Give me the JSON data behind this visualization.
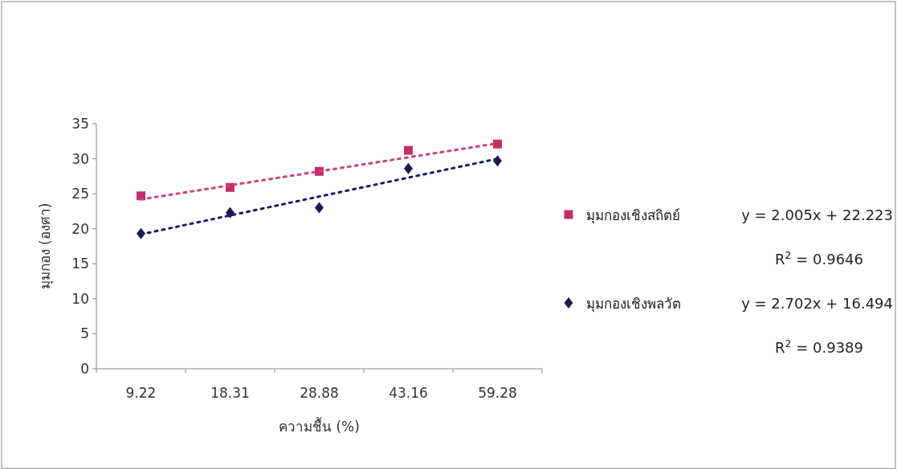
{
  "chart_data": {
    "type": "scatter",
    "xlabel": "ความชื้น (%)",
    "ylabel": "มุมกอง (องศา)",
    "categories": [
      "9.22",
      "18.31",
      "28.88",
      "43.16",
      "59.28"
    ],
    "ylim": [
      0,
      35
    ],
    "yticks": [
      0,
      5,
      10,
      15,
      20,
      25,
      30,
      35
    ],
    "legend": "right",
    "series": [
      {
        "name": "มุมกองเชิงสถิตย์",
        "type": "scatter",
        "marker": "square",
        "color": "#c0306a",
        "values": [
          24.7,
          25.9,
          28.2,
          31.2,
          32.1
        ]
      },
      {
        "name": "มุมกองเชิงพลวัต",
        "type": "scatter",
        "marker": "diamond",
        "color": "#1a1a4e",
        "values": [
          19.3,
          22.3,
          23.0,
          28.6,
          29.7
        ]
      },
      {
        "type": "line",
        "line_style": "dotted",
        "color": "#d0407a",
        "x": [
          "9.22",
          "59.28"
        ],
        "values": [
          24.2,
          32.2
        ]
      },
      {
        "type": "line",
        "line_style": "dotted",
        "color": "#1a1a6e",
        "x": [
          "9.22",
          "59.28"
        ],
        "values": [
          19.2,
          30.0
        ]
      }
    ],
    "annotations": [
      "y = 2.005x + 22.223",
      "R$^{2}$ = 0.9646",
      "y = 2.702x + 16.494",
      "R$^{2}$ = 0.9389"
    ]
  }
}
